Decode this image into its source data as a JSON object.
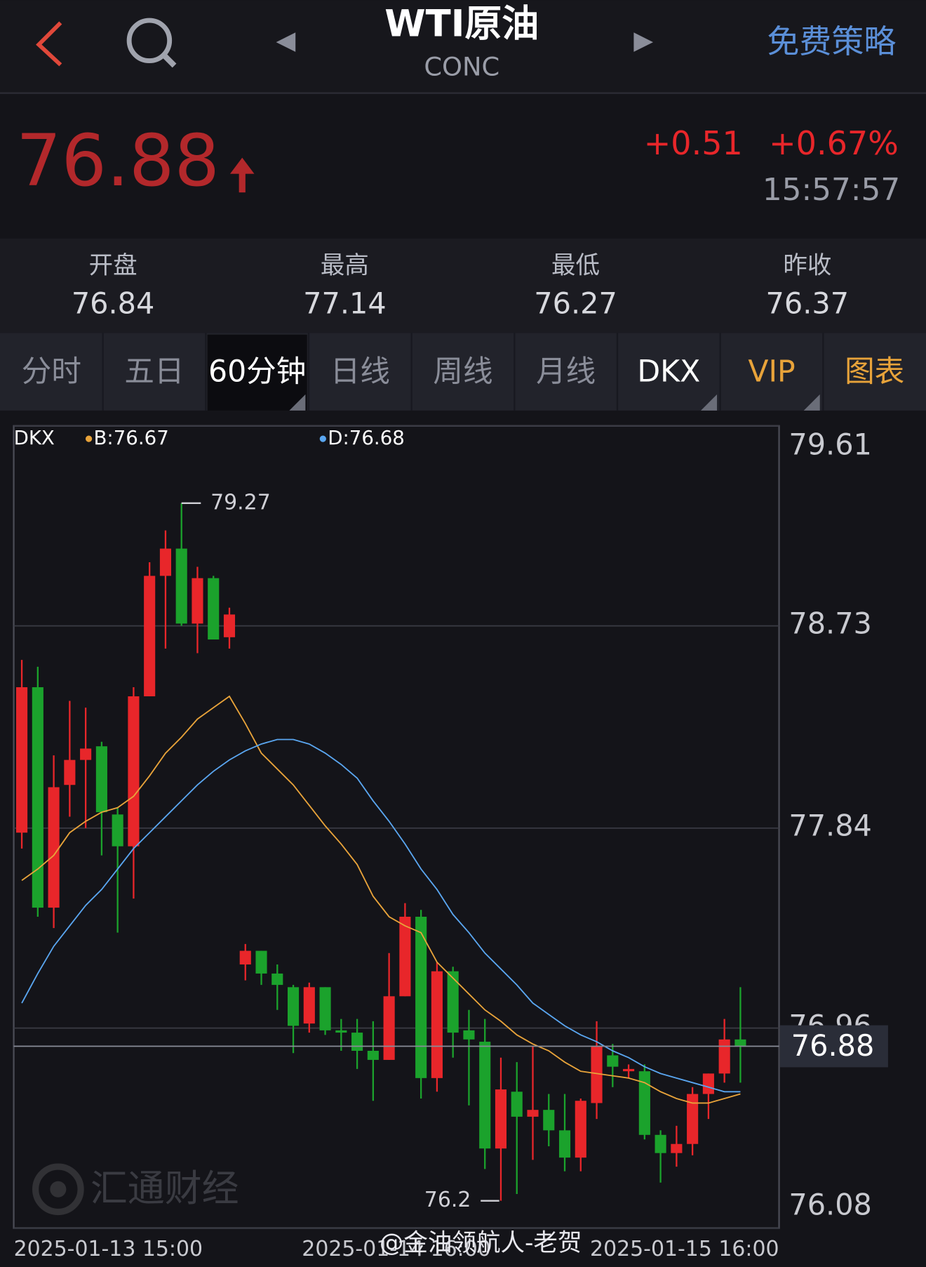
{
  "header": {
    "title": "WTI原油",
    "subtitle": "CONC",
    "action": "免费策略"
  },
  "quote": {
    "price": "76.88",
    "change": "+0.51",
    "change_pct": "+0.67%",
    "time": "15:57:57"
  },
  "stats": [
    {
      "label": "开盘",
      "value": "76.84"
    },
    {
      "label": "最高",
      "value": "77.14"
    },
    {
      "label": "最低",
      "value": "76.27"
    },
    {
      "label": "昨收",
      "value": "76.37"
    }
  ],
  "tabs": [
    "分时",
    "五日",
    "60分钟",
    "日线",
    "周线",
    "月线",
    "DKX",
    "VIP",
    "图表"
  ],
  "chart_data": {
    "type": "candlestick",
    "indicator": "DKX",
    "up_color": "#e8262a",
    "down_color": "#1ba22c",
    "open": [
      77.82,
      78.46,
      77.49,
      78.03,
      78.14,
      78.2,
      77.9,
      77.76,
      78.42,
      78.95,
      79.07,
      78.74,
      78.94,
      78.68,
      77.24,
      77.3,
      77.2,
      77.14,
      76.98,
      77.14,
      76.95,
      76.94,
      76.86,
      76.82,
      77.1,
      77.45,
      76.74,
      77.21,
      76.95,
      76.9,
      76.43,
      76.68,
      76.57,
      76.6,
      76.51,
      76.39,
      76.63,
      76.84,
      76.77,
      76.77,
      76.49,
      76.41,
      76.45,
      76.67,
      76.76,
      76.91
    ],
    "high": [
      78.58,
      78.55,
      78.16,
      78.4,
      78.37,
      78.22,
      77.93,
      78.46,
      79.01,
      79.15,
      79.27,
      78.99,
      78.95,
      78.81,
      77.33,
      77.3,
      77.24,
      77.15,
      77.16,
      77.14,
      77.0,
      77.0,
      76.99,
      77.29,
      77.51,
      77.48,
      77.25,
      77.23,
      77.04,
      77.0,
      76.83,
      76.81,
      76.88,
      76.67,
      76.67,
      76.65,
      76.99,
      76.89,
      76.8,
      76.8,
      76.51,
      76.53,
      76.7,
      76.76,
      77.0,
      77.14
    ],
    "low": [
      77.75,
      77.45,
      77.4,
      77.89,
      77.84,
      77.72,
      77.38,
      77.53,
      78.42,
      78.63,
      78.73,
      78.61,
      78.67,
      78.63,
      77.17,
      77.15,
      77.04,
      76.85,
      76.94,
      76.93,
      76.86,
      76.78,
      76.64,
      76.82,
      77.1,
      76.65,
      76.68,
      76.83,
      76.62,
      76.34,
      76.2,
      76.23,
      76.38,
      76.44,
      76.33,
      76.33,
      76.56,
      76.7,
      76.74,
      76.47,
      76.28,
      76.35,
      76.4,
      76.56,
      76.72,
      76.72
    ],
    "close": [
      78.46,
      77.49,
      78.02,
      78.14,
      78.19,
      77.91,
      77.76,
      78.42,
      78.95,
      79.07,
      78.74,
      78.94,
      78.67,
      78.78,
      77.3,
      77.2,
      77.15,
      76.97,
      77.14,
      76.95,
      76.94,
      76.86,
      76.82,
      77.1,
      77.45,
      76.74,
      77.21,
      76.94,
      76.91,
      76.43,
      76.69,
      76.57,
      76.6,
      76.51,
      76.39,
      76.64,
      76.88,
      76.79,
      76.78,
      76.49,
      76.41,
      76.45,
      76.67,
      76.76,
      76.91,
      76.88
    ],
    "lines": [
      {
        "name": "B",
        "label": "B:76.67",
        "color": "#e8a33a",
        "values": [
          77.61,
          77.66,
          77.72,
          77.82,
          77.87,
          77.91,
          77.93,
          77.98,
          78.07,
          78.17,
          78.24,
          78.32,
          78.37,
          78.42,
          78.3,
          78.17,
          78.1,
          78.03,
          77.94,
          77.85,
          77.77,
          77.68,
          77.54,
          77.45,
          77.41,
          77.38,
          77.25,
          77.18,
          77.11,
          77.04,
          76.99,
          76.93,
          76.89,
          76.86,
          76.81,
          76.77,
          76.76,
          76.75,
          76.74,
          76.72,
          76.68,
          76.65,
          76.63,
          76.63,
          76.65,
          76.67
        ]
      },
      {
        "name": "D",
        "label": "D:76.68",
        "color": "#5aa6f0",
        "values": [
          77.07,
          77.2,
          77.32,
          77.41,
          77.5,
          77.57,
          77.66,
          77.75,
          77.82,
          77.89,
          77.96,
          78.03,
          78.09,
          78.14,
          78.18,
          78.21,
          78.23,
          78.23,
          78.21,
          78.17,
          78.12,
          78.06,
          77.96,
          77.87,
          77.77,
          77.66,
          77.57,
          77.46,
          77.38,
          77.29,
          77.22,
          77.15,
          77.07,
          77.02,
          76.97,
          76.93,
          76.9,
          76.86,
          76.83,
          76.79,
          76.76,
          76.74,
          76.72,
          76.7,
          76.68,
          76.68
        ]
      }
    ],
    "ylim": [
      76.08,
      79.61
    ],
    "yticks": [
      79.61,
      78.73,
      77.84,
      76.96,
      76.08
    ],
    "grid": true,
    "last_price": 76.88,
    "high_label": 79.27,
    "low_label": 76.2,
    "xtick_labels": [
      "2025-01-13 15:00",
      "2025-01-14 16:00",
      "2025-01-15 16:00"
    ]
  },
  "watermarks": [
    "汇通财经",
    "@金油领航人-老贺"
  ]
}
